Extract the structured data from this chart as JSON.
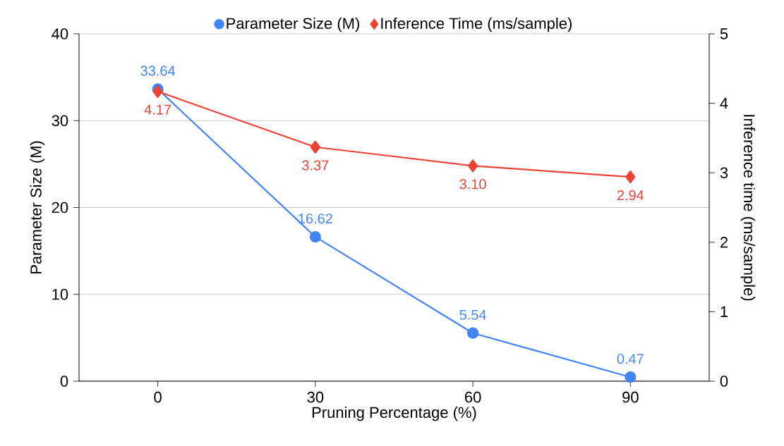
{
  "chart_data": {
    "type": "line",
    "xlabel": "Pruning Percentage (%)",
    "ylabel": "Parameter Size (M)",
    "y2label": "Inference time (ms/sample)",
    "categories": [
      "0",
      "30",
      "60",
      "90"
    ],
    "series": [
      {
        "name": "Parameter Size (M)",
        "color": "#4285f4",
        "marker": "circle",
        "values": [
          33.64,
          16.62,
          5.54,
          0.47
        ],
        "value_labels": [
          "33.64",
          "16.62",
          "5.54",
          "0.47"
        ]
      },
      {
        "name": "Inference Time (ms/sample)",
        "color": "#ea4335",
        "marker": "diamond",
        "axis": "y2",
        "values": [
          4.17,
          3.37,
          3.1,
          2.94
        ],
        "value_labels": [
          "4.17",
          "3.37",
          "3.10",
          "2.94"
        ]
      }
    ],
    "ylim": [
      0,
      40
    ],
    "yticks": [
      0,
      10,
      20,
      30,
      40
    ],
    "y2lim": [
      0,
      5
    ],
    "y2ticks": [
      0,
      1,
      2,
      3,
      4,
      5
    ],
    "grid": "y",
    "legend": "top",
    "line_style": "solid"
  }
}
